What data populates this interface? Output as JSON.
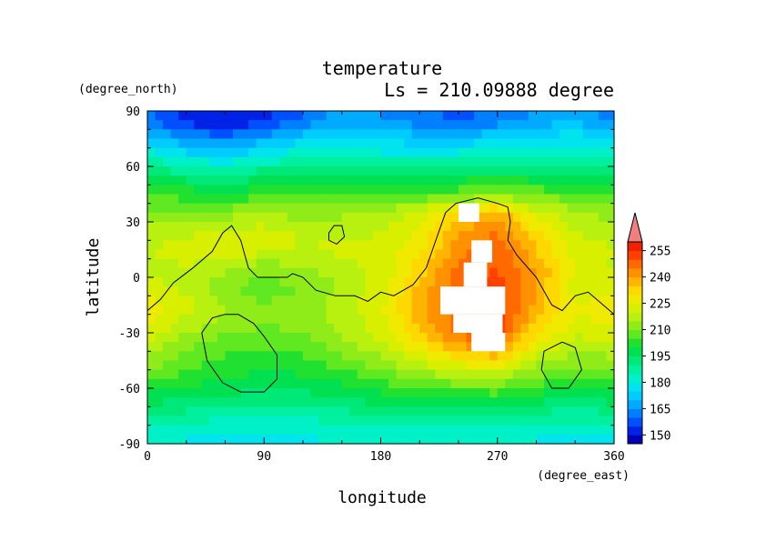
{
  "chart_data": {
    "type": "heatmap",
    "title": "temperature",
    "subtitle": "Ls = 210.09888 degree",
    "xlabel": "longitude",
    "ylabel": "latitude",
    "x_units": "(degree_east)",
    "y_units": "(degree_north)",
    "xlim": [
      0,
      360
    ],
    "ylim": [
      -90,
      90
    ],
    "x_ticks": [
      0,
      90,
      180,
      270,
      360
    ],
    "y_ticks": [
      90,
      60,
      30,
      0,
      -30,
      -60,
      -90
    ],
    "colorbar": {
      "labels": [
        255,
        240,
        225,
        210,
        195,
        180,
        165,
        150
      ],
      "levels": [
        145,
        150,
        155,
        160,
        165,
        170,
        175,
        180,
        185,
        190,
        195,
        200,
        205,
        210,
        215,
        220,
        225,
        230,
        235,
        240,
        245,
        250,
        255,
        260
      ],
      "colors": [
        "#0000b4",
        "#0022e6",
        "#0050ff",
        "#0080ff",
        "#00aaff",
        "#00ccff",
        "#00e4ee",
        "#00f0c8",
        "#00f0a0",
        "#00e878",
        "#00e050",
        "#20e030",
        "#60e820",
        "#90ec18",
        "#b8f010",
        "#d8f000",
        "#f0ea00",
        "#ffd800",
        "#ffb400",
        "#ff9000",
        "#ff6a00",
        "#ff4000",
        "#f02000"
      ],
      "extend_max_color": "#f08080"
    },
    "grid_lat_labels": [
      85,
      75,
      65,
      55,
      45,
      35,
      25,
      15,
      5,
      -5,
      -15,
      -25,
      -35,
      -45,
      -55,
      -65,
      -75,
      -85
    ],
    "grid_lon_labels": [
      0,
      30,
      60,
      90,
      120,
      150,
      180,
      210,
      240,
      270,
      300,
      330
    ],
    "values": [
      [
        162,
        152,
        150,
        153,
        160,
        168,
        165,
        162,
        158,
        162,
        166,
        170
      ],
      [
        172,
        165,
        162,
        168,
        174,
        176,
        174,
        172,
        171,
        174,
        176,
        178
      ],
      [
        184,
        178,
        175,
        180,
        184,
        184,
        182,
        182,
        183,
        185,
        184,
        186
      ],
      [
        196,
        192,
        190,
        194,
        196,
        195,
        194,
        195,
        197,
        198,
        197,
        197
      ],
      [
        204,
        203,
        201,
        203,
        204,
        204,
        203,
        205,
        208,
        210,
        208,
        206
      ],
      [
        212,
        210,
        212,
        215,
        212,
        214,
        216,
        222,
        232,
        238,
        222,
        216
      ],
      [
        218,
        219,
        221,
        222,
        219,
        218,
        220,
        225,
        240,
        245,
        230,
        220
      ],
      [
        220,
        221,
        223,
        222,
        220,
        221,
        222,
        228,
        243,
        250,
        235,
        222
      ],
      [
        219,
        220,
        216,
        212,
        214,
        218,
        221,
        232,
        247,
        250,
        240,
        224
      ],
      [
        222,
        218,
        210,
        208,
        210,
        216,
        222,
        236,
        248,
        252,
        240,
        222
      ],
      [
        228,
        222,
        215,
        210,
        212,
        218,
        224,
        238,
        250,
        254,
        238,
        225
      ],
      [
        226,
        218,
        214,
        210,
        212,
        216,
        223,
        236,
        248,
        254,
        234,
        224
      ],
      [
        220,
        212,
        208,
        206,
        208,
        214,
        220,
        230,
        243,
        248,
        226,
        218
      ],
      [
        214,
        208,
        204,
        202,
        204,
        208,
        214,
        222,
        228,
        232,
        218,
        212
      ],
      [
        206,
        203,
        200,
        198,
        199,
        202,
        206,
        210,
        214,
        215,
        208,
        204
      ],
      [
        198,
        196,
        194,
        193,
        193,
        195,
        198,
        200,
        201,
        202,
        198,
        196
      ],
      [
        188,
        188,
        186,
        186,
        186,
        188,
        190,
        190,
        189,
        190,
        188,
        187
      ],
      [
        180,
        180,
        178,
        178,
        179,
        181,
        182,
        182,
        181,
        181,
        180,
        179
      ]
    ],
    "missing": [
      {
        "lon": [
          240,
          256
        ],
        "lat": [
          30,
          40
        ]
      },
      {
        "lon": [
          250,
          266
        ],
        "lat": [
          8,
          20
        ]
      },
      {
        "lon": [
          244,
          262
        ],
        "lat": [
          -5,
          8
        ]
      },
      {
        "lon": [
          226,
          276
        ],
        "lat": [
          -20,
          -5
        ]
      },
      {
        "lon": [
          236,
          274
        ],
        "lat": [
          -30,
          -20
        ]
      },
      {
        "lon": [
          250,
          276
        ],
        "lat": [
          -40,
          -30
        ]
      }
    ],
    "contours": [
      [
        [
          0,
          -18
        ],
        [
          10,
          -12
        ],
        [
          20,
          -3
        ],
        [
          35,
          5
        ],
        [
          50,
          14
        ],
        [
          58,
          24
        ],
        [
          65,
          28
        ],
        [
          72,
          20
        ],
        [
          78,
          5
        ],
        [
          85,
          0
        ],
        [
          100,
          0
        ],
        [
          108,
          0
        ],
        [
          112,
          2
        ],
        [
          120,
          0
        ],
        [
          130,
          -7
        ],
        [
          145,
          -10
        ],
        [
          160,
          -10
        ],
        [
          170,
          -13
        ],
        [
          180,
          -8
        ],
        [
          190,
          -10
        ],
        [
          205,
          -4
        ],
        [
          215,
          5
        ],
        [
          220,
          15
        ],
        [
          225,
          25
        ],
        [
          230,
          35
        ],
        [
          238,
          40
        ],
        [
          255,
          43
        ],
        [
          270,
          40
        ],
        [
          278,
          38
        ],
        [
          280,
          30
        ],
        [
          278,
          20
        ],
        [
          285,
          12
        ],
        [
          300,
          0
        ],
        [
          312,
          -15
        ],
        [
          320,
          -18
        ],
        [
          330,
          -10
        ],
        [
          340,
          -8
        ],
        [
          350,
          -14
        ],
        [
          360,
          -20
        ]
      ],
      [
        [
          70,
          -20
        ],
        [
          82,
          -25
        ],
        [
          90,
          -32
        ],
        [
          100,
          -42
        ],
        [
          100,
          -55
        ],
        [
          90,
          -62
        ],
        [
          72,
          -62
        ],
        [
          58,
          -57
        ],
        [
          46,
          -45
        ],
        [
          42,
          -30
        ],
        [
          50,
          -22
        ],
        [
          60,
          -20
        ],
        [
          70,
          -20
        ]
      ],
      [
        [
          140,
          20
        ],
        [
          146,
          18
        ],
        [
          152,
          22
        ],
        [
          150,
          28
        ],
        [
          144,
          28
        ],
        [
          140,
          24
        ],
        [
          140,
          20
        ]
      ],
      [
        [
          320,
          -35
        ],
        [
          330,
          -38
        ],
        [
          335,
          -50
        ],
        [
          325,
          -60
        ],
        [
          312,
          -60
        ],
        [
          304,
          -50
        ],
        [
          306,
          -40
        ],
        [
          320,
          -35
        ]
      ]
    ]
  }
}
